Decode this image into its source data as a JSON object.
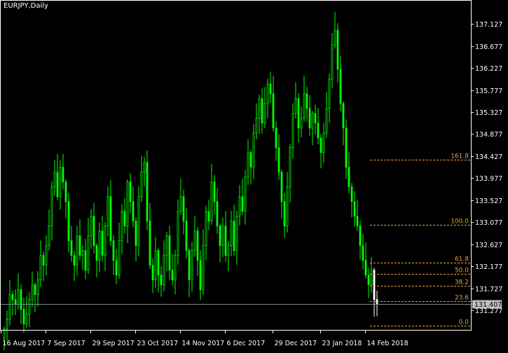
{
  "title": "EURJPY,Daily",
  "colors": {
    "background": "#000000",
    "frame": "#ffffff",
    "candle_up": "#00ff00",
    "candle_down": "#00ff00",
    "bid_line": "#778899",
    "fibo_line": "#f0a040",
    "fibo_text": "#f0a040",
    "axis_text": "#ffffff",
    "current_price_bg": "#c0c0c0",
    "current_price_text": "#000000",
    "highlight_bar": "#ffffff"
  },
  "chart_data": {
    "type": "candlestick",
    "symbol": "EURJPY",
    "timeframe": "Daily",
    "ylim": [
      130.88,
      137.6
    ],
    "y_ticks": [
      "137.127",
      "136.677",
      "136.227",
      "135.777",
      "135.327",
      "134.877",
      "134.427",
      "133.977",
      "133.527",
      "133.077",
      "132.627",
      "132.177",
      "131.727",
      "131.277"
    ],
    "y_tick_values": [
      137.127,
      136.677,
      136.227,
      135.777,
      135.327,
      134.877,
      134.427,
      133.977,
      133.527,
      133.077,
      132.627,
      132.177,
      131.727,
      131.277
    ],
    "x_ticks": [
      {
        "label": "16 Aug 2017",
        "bar": 0
      },
      {
        "label": "7 Sep 2017",
        "bar": 16
      },
      {
        "label": "29 Sep 2017",
        "bar": 32
      },
      {
        "label": "23 Oct 2017",
        "bar": 48
      },
      {
        "label": "14 Nov 2017",
        "bar": 64
      },
      {
        "label": "6 Dec 2017",
        "bar": 80
      },
      {
        "label": "29 Dec 2017",
        "bar": 97
      },
      {
        "label": "23 Jan 2018",
        "bar": 114
      },
      {
        "label": "14 Feb 2018",
        "bar": 130
      }
    ],
    "current_price": "131.407",
    "current_price_value": 131.407,
    "fibonacci": {
      "start_bar": 131,
      "levels": [
        {
          "label": "161.8",
          "value": 134.35
        },
        {
          "label": "100.0",
          "value": 133.03
        },
        {
          "label": "61.8",
          "value": 132.25
        },
        {
          "label": "50.0",
          "value": 132.03
        },
        {
          "label": "38.2",
          "value": 131.78
        },
        {
          "label": "23.6",
          "value": 131.47
        },
        {
          "label": "0.0",
          "value": 130.97
        }
      ]
    },
    "bar_count": 134,
    "closes": [
      130.9,
      131.1,
      131.6,
      131.5,
      131.4,
      131.7,
      131.3,
      131.0,
      131.2,
      131.5,
      131.8,
      131.6,
      131.9,
      132.4,
      132.2,
      132.6,
      133.0,
      133.8,
      134.1,
      133.6,
      134.2,
      133.9,
      133.5,
      132.7,
      132.4,
      132.2,
      132.8,
      132.4,
      132.5,
      132.1,
      132.8,
      133.2,
      132.6,
      132.3,
      132.9,
      132.4,
      133.0,
      133.6,
      132.7,
      132.3,
      132.0,
      132.7,
      133.3,
      133.0,
      133.9,
      133.5,
      133.1,
      132.6,
      133.6,
      134.1,
      134.3,
      133.1,
      132.2,
      131.9,
      132.5,
      132.0,
      131.8,
      132.4,
      132.8,
      132.1,
      131.9,
      132.4,
      133.3,
      133.6,
      133.1,
      132.5,
      131.9,
      132.5,
      132.9,
      132.3,
      131.7,
      132.6,
      133.3,
      133.1,
      133.9,
      133.5,
      133.0,
      132.6,
      133.0,
      132.4,
      132.6,
      133.1,
      132.5,
      133.2,
      133.6,
      133.3,
      134.0,
      134.5,
      134.2,
      134.9,
      135.2,
      135.6,
      135.1,
      135.5,
      135.9,
      135.7,
      135.0,
      134.6,
      134.1,
      133.5,
      133.0,
      133.8,
      134.6,
      135.3,
      135.6,
      135.0,
      135.2,
      135.7,
      135.4,
      135.0,
      135.3,
      135.1,
      134.8,
      134.5,
      134.9,
      135.4,
      136.0,
      136.7,
      137.0,
      136.2,
      135.5,
      135.0,
      134.2,
      133.8,
      133.5,
      133.2,
      133.0,
      132.6,
      132.3,
      132.0,
      131.8,
      132.1,
      131.5,
      131.4
    ]
  }
}
